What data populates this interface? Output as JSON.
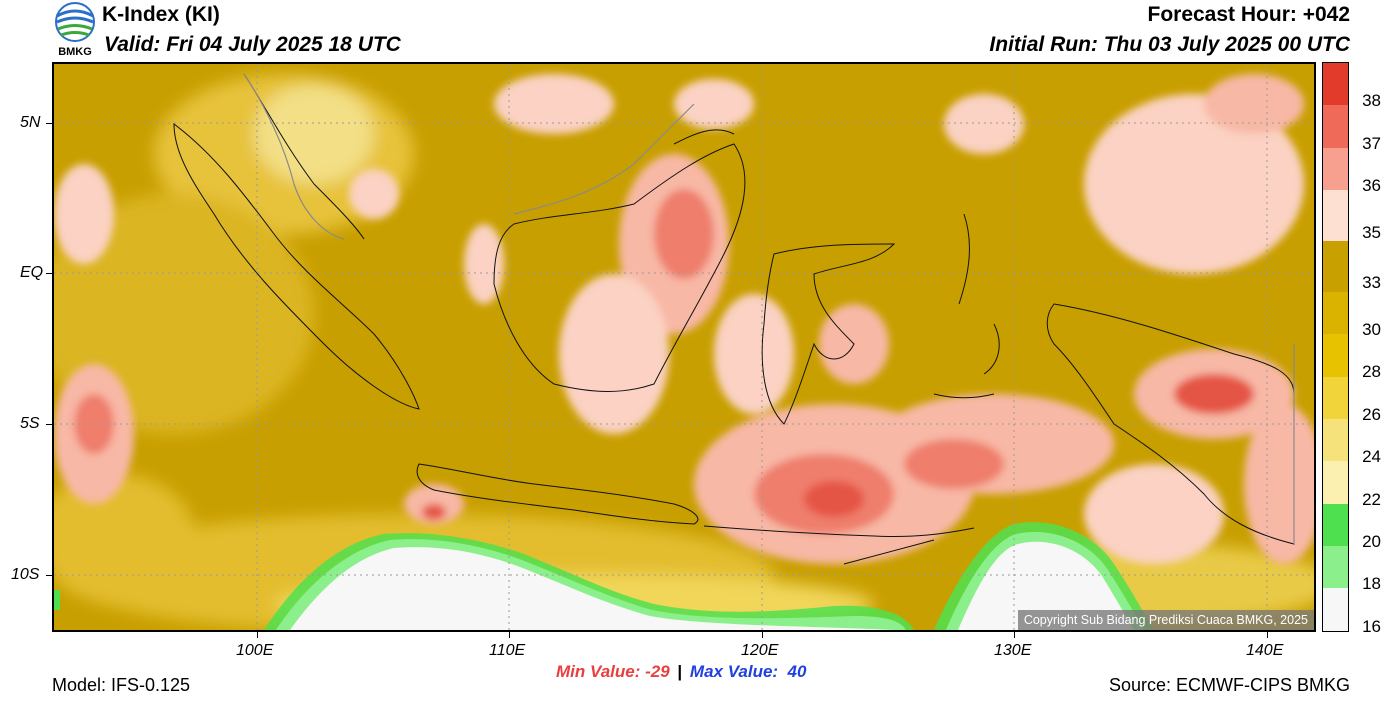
{
  "header": {
    "title": "K-Index (KI)",
    "valid": "Valid: Fri 04 July 2025 18 UTC",
    "forecast_hour": "Forecast Hour: +042",
    "initial_run": "Initial Run: Thu 03 July 2025 00 UTC",
    "logo_text": "BMKG"
  },
  "map": {
    "lat_labels": [
      "5N",
      "EQ",
      "5S",
      "10S"
    ],
    "lon_labels": [
      "100E",
      "110E",
      "120E",
      "130E",
      "140E"
    ],
    "copyright": "Copyright Sub Bidang Prediksi Cuaca BMKG, 2025"
  },
  "colorbar": {
    "labels": [
      "38",
      "37",
      "36",
      "35",
      "33",
      "30",
      "28",
      "26",
      "24",
      "22",
      "20",
      "18",
      "16"
    ],
    "colors": [
      "#e23a2b",
      "#f06a5a",
      "#f7a08f",
      "#fde0d2",
      "#c8a000",
      "#d9b300",
      "#e6c200",
      "#f0d43a",
      "#f6e27a",
      "#fbf0b0",
      "#4fe04f",
      "#8bf08b",
      "#f7f7f7"
    ]
  },
  "stats": {
    "min_label": "Min Value: -29",
    "separator": "|",
    "max_label": "Max Value:  40"
  },
  "footer": {
    "model": "Model: IFS-0.125",
    "source": "Source: ECMWF-CIPS BMKG"
  }
}
